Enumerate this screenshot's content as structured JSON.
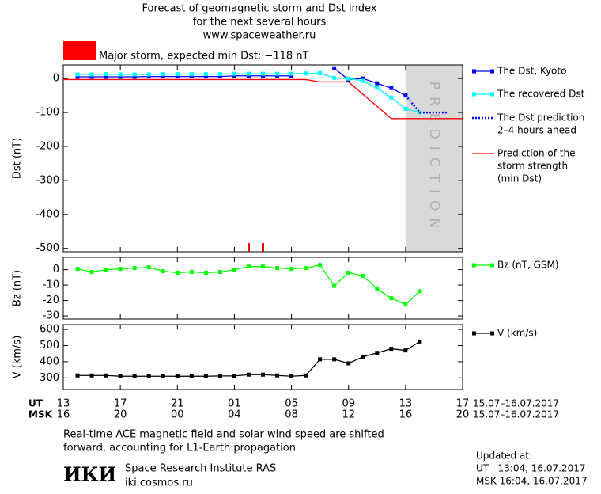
{
  "chart_data": [
    {
      "type": "line",
      "title": [
        "Forecast of geomagnetic storm and Dst index",
        "for the next several hours",
        "www.spaceweather.ru"
      ],
      "storm_level": {
        "label": "Major storm, expected min Dst: −118 nT",
        "color": "#ff0000"
      },
      "y_label": "Dst (nT)",
      "xlim": [
        0,
        28
      ],
      "ylim": [
        -510,
        40
      ],
      "yticks": [
        0,
        -100,
        -200,
        -300,
        -400,
        -500
      ],
      "shaded_region": {
        "label": "PREDICTION",
        "x": [
          24,
          28
        ],
        "color": "#d9d9d9"
      },
      "event_markers": {
        "x": [
          13,
          14
        ],
        "color": "#ff0000"
      },
      "series": [
        {
          "name": [
            "The Dst, Kyoto"
          ],
          "color": "#0000ff",
          "marker": "square",
          "dash": "solid",
          "x": [
            1,
            2,
            3,
            4,
            5,
            6,
            7,
            8,
            9,
            10,
            11,
            12,
            13,
            14,
            15,
            16,
            17,
            18,
            19,
            20,
            21,
            22,
            23,
            24
          ],
          "values": [
            5,
            5,
            5,
            5,
            5,
            6,
            6,
            6,
            6,
            6,
            6,
            8,
            8,
            8,
            8,
            8,
            null,
            null,
            30,
            -3,
            0,
            -14,
            -28,
            -50
          ]
        },
        {
          "name": [
            "The recovered Dst"
          ],
          "color": "#00ffff",
          "marker": "square",
          "dash": "solid",
          "x": [
            1,
            2,
            3,
            4,
            5,
            6,
            7,
            8,
            9,
            10,
            11,
            12,
            13,
            14,
            15,
            16,
            17,
            18,
            19,
            20,
            21,
            22,
            23,
            24,
            25
          ],
          "values": [
            12,
            12,
            13,
            12,
            12,
            12,
            13,
            13,
            13,
            13,
            13,
            14,
            14,
            14,
            14,
            14,
            15,
            16,
            2,
            0,
            -7,
            -28,
            -56,
            -89,
            -100
          ]
        },
        {
          "name": [
            "The Dst prediction",
            "2–4 hours ahead"
          ],
          "color": "#0000ff",
          "marker": "none",
          "dash": "dotted",
          "x": [
            24,
            25,
            26,
            27
          ],
          "values": [
            -50,
            -100,
            -100,
            -100
          ]
        },
        {
          "name": [
            "Prediction of the",
            "storm strength",
            "(min Dst)"
          ],
          "color": "#ff0000",
          "marker": "none",
          "dash": "solid",
          "x": [
            0,
            17,
            18,
            20,
            23,
            28
          ],
          "values": [
            -3,
            -3,
            -10,
            -10,
            -118,
            -118
          ]
        }
      ]
    },
    {
      "type": "line",
      "y_label": "Bz (nT)",
      "xlim": [
        0,
        28
      ],
      "ylim": [
        -32,
        8
      ],
      "yticks": [
        0,
        -10,
        -20,
        -30
      ],
      "series": [
        {
          "name": [
            "Bz (nT, GSM)"
          ],
          "color": "#00ff00",
          "marker": "square",
          "dash": "solid",
          "x": [
            1,
            2,
            3,
            4,
            5,
            6,
            7,
            8,
            9,
            10,
            11,
            12,
            13,
            14,
            15,
            16,
            17,
            18,
            19,
            20,
            21,
            22,
            23,
            24,
            25
          ],
          "values": [
            0.5,
            -1.5,
            0,
            0.5,
            1,
            1.5,
            -1,
            -2,
            -1.5,
            -2,
            -1.5,
            0,
            2,
            2,
            1,
            0.5,
            1,
            3,
            -10.5,
            -2,
            -4,
            -12.5,
            -18.5,
            -22.5,
            -14
          ]
        }
      ]
    },
    {
      "type": "line",
      "y_label": "V (km/s)",
      "xlim": [
        0,
        28
      ],
      "ylim": [
        228,
        630
      ],
      "yticks": [
        300,
        400,
        500,
        600
      ],
      "xticks": [
        {
          "value": 0,
          "label": "13"
        },
        {
          "value": 4,
          "label": "17"
        },
        {
          "value": 8,
          "label": "21"
        },
        {
          "value": 12,
          "label": "01"
        },
        {
          "value": 16,
          "label": "05"
        },
        {
          "value": 20,
          "label": "09"
        },
        {
          "value": 24,
          "label": "13"
        },
        {
          "value": 28,
          "label": "17"
        }
      ],
      "msk_ticks": [
        {
          "value": 0,
          "label": "16"
        },
        {
          "value": 4,
          "label": "20"
        },
        {
          "value": 8,
          "label": "00"
        },
        {
          "value": 12,
          "label": "04"
        },
        {
          "value": 16,
          "label": "08"
        },
        {
          "value": 20,
          "label": "12"
        },
        {
          "value": 24,
          "label": "16"
        },
        {
          "value": 28,
          "label": "20"
        }
      ],
      "series": [
        {
          "name": [
            "V (km/s)"
          ],
          "color": "#000000",
          "marker": "square",
          "dash": "solid",
          "x": [
            1,
            2,
            3,
            4,
            5,
            6,
            7,
            8,
            9,
            10,
            11,
            12,
            13,
            14,
            15,
            16,
            17,
            18,
            19,
            20,
            21,
            22,
            23,
            24,
            25
          ],
          "values": [
            315,
            315,
            315,
            310,
            310,
            310,
            310,
            310,
            310,
            310,
            312,
            312,
            320,
            320,
            315,
            310,
            315,
            415,
            415,
            390,
            430,
            455,
            480,
            470,
            525
          ]
        }
      ]
    }
  ],
  "time_axis": {
    "ut": "UT",
    "msk": "MSK",
    "dates_ut": "15.07–16.07.2017",
    "dates_msk": "15.07–16.07.2017"
  },
  "footer": {
    "note": [
      "Real-time ACE magnetic field and solar wind speed are shifted",
      "forward, accounting for L1-Earth propagation"
    ],
    "logo": "ИКИ",
    "institute": "Space Research Institute RAS",
    "site": "iki.cosmos.ru",
    "updated": "Updated at:",
    "updated_ut": "UT   13:04, 16.07.2017",
    "updated_msk": "MSK 16:04, 16.07.2017"
  }
}
